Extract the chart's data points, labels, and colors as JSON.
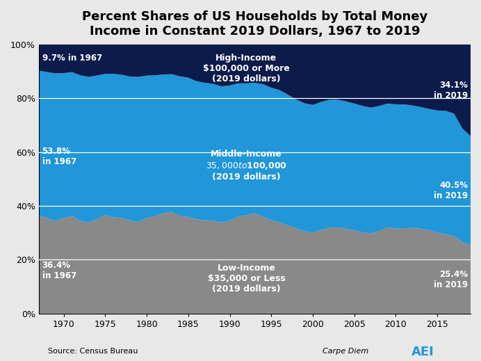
{
  "title": "Percent Shares of US Households by Total Money\nIncome in Constant 2019 Dollars, 1967 to 2019",
  "years": [
    1967,
    1968,
    1969,
    1970,
    1971,
    1972,
    1973,
    1974,
    1975,
    1976,
    1977,
    1978,
    1979,
    1980,
    1981,
    1982,
    1983,
    1984,
    1985,
    1986,
    1987,
    1988,
    1989,
    1990,
    1991,
    1992,
    1993,
    1994,
    1995,
    1996,
    1997,
    1998,
    1999,
    2000,
    2001,
    2002,
    2003,
    2004,
    2005,
    2006,
    2007,
    2008,
    2009,
    2010,
    2011,
    2012,
    2013,
    2014,
    2015,
    2016,
    2017,
    2018,
    2019
  ],
  "low_income": [
    36.4,
    35.5,
    34.4,
    35.5,
    36.2,
    34.5,
    33.8,
    35.1,
    36.6,
    35.8,
    35.5,
    34.5,
    34.1,
    35.5,
    36.2,
    37.3,
    37.8,
    36.3,
    35.9,
    35.0,
    34.7,
    34.5,
    33.8,
    34.5,
    36.1,
    36.5,
    37.2,
    36.1,
    34.7,
    33.9,
    32.8,
    31.6,
    30.6,
    30.1,
    31.1,
    31.9,
    32.0,
    31.5,
    30.9,
    30.2,
    29.8,
    30.6,
    32.0,
    31.6,
    31.7,
    31.8,
    31.5,
    31.0,
    30.0,
    29.5,
    28.8,
    26.6,
    25.4
  ],
  "middle_income": [
    53.8,
    54.2,
    54.8,
    53.8,
    53.5,
    54.0,
    54.1,
    53.3,
    52.4,
    53.2,
    53.2,
    53.5,
    53.8,
    52.9,
    52.3,
    51.5,
    51.1,
    51.8,
    51.7,
    51.3,
    51.0,
    50.8,
    50.6,
    50.2,
    49.4,
    49.0,
    48.5,
    49.1,
    49.2,
    49.1,
    48.5,
    47.9,
    47.5,
    47.4,
    47.5,
    47.5,
    47.4,
    47.3,
    47.1,
    46.9,
    46.7,
    46.5,
    46.0,
    46.1,
    46.0,
    45.5,
    45.2,
    45.0,
    45.4,
    45.8,
    45.5,
    42.2,
    40.5
  ],
  "high_income": [
    9.7,
    10.3,
    10.8,
    10.7,
    10.3,
    11.5,
    12.1,
    11.6,
    11.0,
    11.0,
    11.3,
    12.0,
    12.1,
    11.6,
    11.5,
    11.2,
    11.1,
    11.9,
    12.4,
    13.7,
    14.3,
    14.7,
    15.6,
    15.3,
    14.5,
    14.5,
    14.3,
    14.8,
    16.1,
    17.0,
    18.7,
    20.5,
    21.9,
    22.5,
    21.4,
    20.6,
    20.6,
    21.2,
    22.0,
    22.9,
    23.5,
    22.9,
    22.0,
    22.3,
    22.3,
    22.7,
    23.3,
    24.0,
    24.6,
    24.7,
    25.7,
    31.2,
    34.1
  ],
  "low_color": "#898989",
  "middle_color": "#2196D9",
  "high_color": "#0D1B4B",
  "bg_color": "#E8E8E8",
  "plot_bg_color": "#E8E8E8",
  "grid_color": "white",
  "ylim": [
    0,
    100
  ],
  "title_fontsize": 13,
  "source_text": "Source: Census Bureau",
  "carpe_diem_text": "Carpe Diem",
  "xticks": [
    1970,
    1975,
    1980,
    1985,
    1990,
    1995,
    2000,
    2005,
    2010,
    2015
  ]
}
